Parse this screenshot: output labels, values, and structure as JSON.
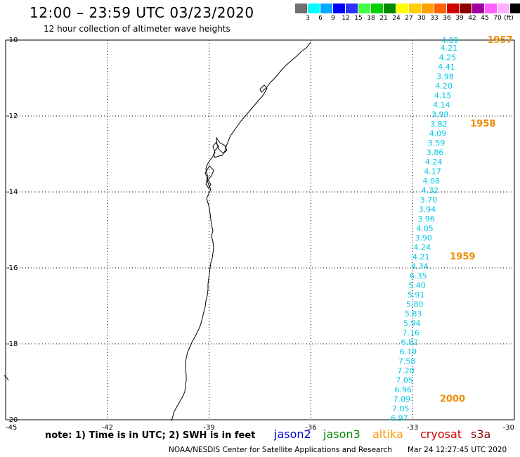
{
  "header": {
    "title": "12:00 – 23:59 UTC 03/23/2020",
    "subtitle": "12 hour collection of altimeter wave heights"
  },
  "colorbar": {
    "unit": "(ft)",
    "colors": [
      "#707070",
      "#00ffff",
      "#00a8ff",
      "#0000ff",
      "#3030ff",
      "#40ff40",
      "#00d000",
      "#008800",
      "#ffff00",
      "#ffd000",
      "#ffa000",
      "#ff6000",
      "#d00000",
      "#900000",
      "#a000a0",
      "#ff60ff",
      "#ffb0ff",
      "#000000"
    ],
    "labels": [
      "3",
      "6",
      "9",
      "12",
      "15",
      "18",
      "21",
      "24",
      "27",
      "30",
      "33",
      "36",
      "39",
      "42",
      "45",
      "70"
    ]
  },
  "map": {
    "lon_ticks": [
      "-45",
      "-42",
      "-39",
      "-36",
      "-33",
      "-30"
    ],
    "lat_ticks": [
      "-10",
      "-12",
      "-14",
      "-16",
      "-18",
      "-20"
    ],
    "lon_range": [
      -45,
      -30
    ],
    "lat_range": [
      -20,
      -10
    ],
    "wave_color": "#00c8e6",
    "time_color": "#f08c00",
    "wave_heights": [
      {
        "lon": -31.9,
        "lat": -10.0,
        "value": "4.09"
      },
      {
        "lon": -31.93,
        "lat": -10.2,
        "value": "4.21"
      },
      {
        "lon": -31.97,
        "lat": -10.45,
        "value": "4.25"
      },
      {
        "lon": -32.0,
        "lat": -10.7,
        "value": "4.41"
      },
      {
        "lon": -32.04,
        "lat": -10.95,
        "value": "3.98"
      },
      {
        "lon": -32.08,
        "lat": -11.2,
        "value": "4.20"
      },
      {
        "lon": -32.11,
        "lat": -11.45,
        "value": "4.15"
      },
      {
        "lon": -32.15,
        "lat": -11.7,
        "value": "4.14"
      },
      {
        "lon": -32.19,
        "lat": -11.95,
        "value": "3.99"
      },
      {
        "lon": -32.23,
        "lat": -12.2,
        "value": "3.82"
      },
      {
        "lon": -32.26,
        "lat": -12.45,
        "value": "4.09"
      },
      {
        "lon": -32.3,
        "lat": -12.7,
        "value": "3.59"
      },
      {
        "lon": -32.34,
        "lat": -12.95,
        "value": "3.86"
      },
      {
        "lon": -32.38,
        "lat": -13.2,
        "value": "4.24"
      },
      {
        "lon": -32.41,
        "lat": -13.45,
        "value": "4.17"
      },
      {
        "lon": -32.45,
        "lat": -13.7,
        "value": "4.08"
      },
      {
        "lon": -32.49,
        "lat": -13.95,
        "value": "4.32"
      },
      {
        "lon": -32.53,
        "lat": -14.2,
        "value": "3.70"
      },
      {
        "lon": -32.57,
        "lat": -14.45,
        "value": "3.94"
      },
      {
        "lon": -32.6,
        "lat": -14.7,
        "value": "3.96"
      },
      {
        "lon": -32.64,
        "lat": -14.95,
        "value": "4.05"
      },
      {
        "lon": -32.68,
        "lat": -15.2,
        "value": "3.90"
      },
      {
        "lon": -32.72,
        "lat": -15.45,
        "value": "4.24"
      },
      {
        "lon": -32.75,
        "lat": -15.7,
        "value": "4.21"
      },
      {
        "lon": -32.79,
        "lat": -15.95,
        "value": "4.34"
      },
      {
        "lon": -32.83,
        "lat": -16.2,
        "value": "6.35"
      },
      {
        "lon": -32.87,
        "lat": -16.45,
        "value": "5.40"
      },
      {
        "lon": -32.9,
        "lat": -16.7,
        "value": "5.91"
      },
      {
        "lon": -32.94,
        "lat": -16.95,
        "value": "5.80"
      },
      {
        "lon": -32.98,
        "lat": -17.2,
        "value": "5.83"
      },
      {
        "lon": -33.02,
        "lat": -17.45,
        "value": "5.94"
      },
      {
        "lon": -33.05,
        "lat": -17.7,
        "value": "7.16"
      },
      {
        "lon": -33.09,
        "lat": -17.95,
        "value": "6.82"
      },
      {
        "lon": -33.13,
        "lat": -18.2,
        "value": "6.19"
      },
      {
        "lon": -33.17,
        "lat": -18.45,
        "value": "7.58"
      },
      {
        "lon": -33.2,
        "lat": -18.7,
        "value": "7.20"
      },
      {
        "lon": -33.24,
        "lat": -18.95,
        "value": "7.05"
      },
      {
        "lon": -33.28,
        "lat": -19.2,
        "value": "6.96"
      },
      {
        "lon": -33.32,
        "lat": -19.45,
        "value": "7.09"
      },
      {
        "lon": -33.35,
        "lat": -19.7,
        "value": "7.05"
      },
      {
        "lon": -33.39,
        "lat": -19.95,
        "value": "6.97"
      }
    ],
    "time_labels": [
      {
        "lon": -30.8,
        "lat": -10.0,
        "value": "1957"
      },
      {
        "lon": -31.3,
        "lat": -12.2,
        "value": "1958"
      },
      {
        "lon": -31.9,
        "lat": -15.7,
        "value": "1959"
      },
      {
        "lon": -32.2,
        "lat": -19.45,
        "value": "2000"
      }
    ]
  },
  "footer": {
    "note": "note:  1) Time is in UTC;  2) SWH is in feet",
    "satellites": [
      {
        "name": "jason2",
        "color": "#0000d0"
      },
      {
        "name": "jason3",
        "color": "#008800"
      },
      {
        "name": "altika",
        "color": "#ff9900"
      },
      {
        "name": "cryosat",
        "color": "#d00000"
      },
      {
        "name": "s3a",
        "color": "#880000"
      }
    ],
    "credit": "NOAA/NESDIS Center for Satellite Applications and Research",
    "timestamp": "Mar 24 12:27:45 UTC 2020"
  }
}
